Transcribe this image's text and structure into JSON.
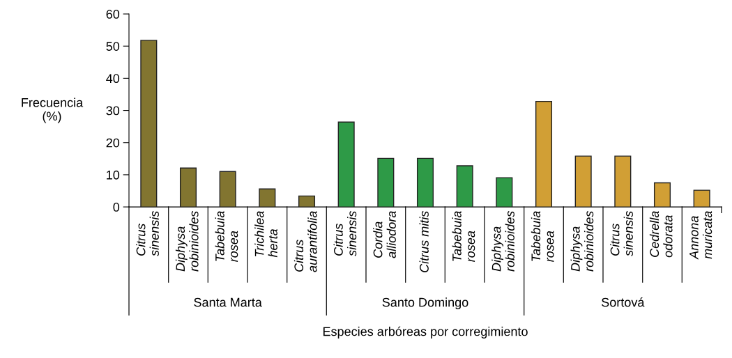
{
  "chart_data": {
    "type": "bar",
    "xlabel": "Especies arbóreas por corregimiento",
    "ylabel": "Frecuencia\n(%)",
    "categories": [
      "Citrus\nsinensis",
      "Diphysa\nrobinioides",
      "Tabebuia\nrosea",
      "Trichilea\nherta",
      "Citrus\naurantifolia",
      "Citrus\nsinensis",
      "Cordia\nalliodora",
      "Citrus mitis",
      "Tabebuia\nrosea",
      "Diphysa\nrobinioides",
      "Tabebuia\nrosea",
      "Diphysa\nrobinioides",
      "Citrus\nsinensis",
      "Cedrella\nodorata",
      "Annona\nmuricata"
    ],
    "series": [
      {
        "color": "#827530",
        "values": [
          51.8,
          12.1,
          11.0,
          5.6,
          3.4,
          null,
          null,
          null,
          null,
          null,
          null,
          null,
          null,
          null,
          null
        ]
      },
      {
        "color": "#2e9a47",
        "values": [
          null,
          null,
          null,
          null,
          null,
          26.4,
          15.1,
          15.1,
          12.8,
          9.1,
          null,
          null,
          null,
          null,
          null
        ]
      },
      {
        "color": "#d19f35",
        "values": [
          null,
          null,
          null,
          null,
          null,
          null,
          null,
          null,
          null,
          null,
          32.8,
          15.8,
          15.8,
          7.5,
          5.2
        ]
      }
    ],
    "annotations": [
      "Santa Marta",
      "Santo Domingo",
      "Sortová"
    ],
    "ylim": [
      0,
      60
    ],
    "yticks": [
      0,
      10,
      20,
      30,
      40,
      50,
      60
    ],
    "grid": false,
    "legend": false
  }
}
